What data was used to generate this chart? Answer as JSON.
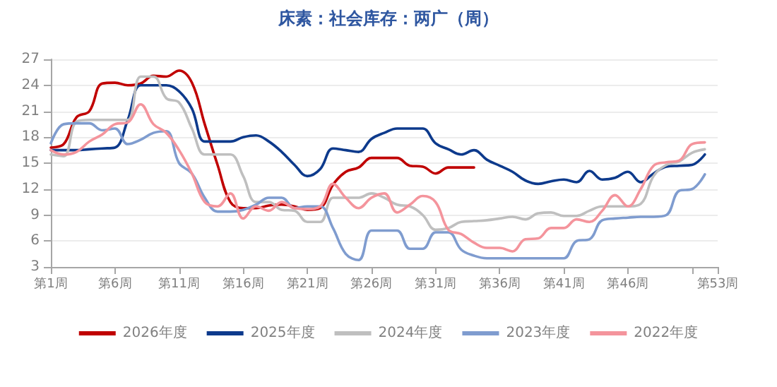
{
  "chart_data": {
    "type": "line",
    "title": "床素：社会库存：两广（周）",
    "categories": [
      "第1周",
      null,
      null,
      null,
      null,
      "第6周",
      null,
      null,
      null,
      null,
      "第11周",
      null,
      null,
      null,
      null,
      "第16周",
      null,
      null,
      null,
      null,
      "第21周",
      null,
      null,
      null,
      null,
      "第26周",
      null,
      null,
      null,
      null,
      "第31周",
      null,
      null,
      null,
      null,
      "第36周",
      null,
      null,
      null,
      null,
      "第41周",
      null,
      null,
      null,
      null,
      "第46周",
      null,
      null,
      null,
      null,
      null,
      null,
      "第53周"
    ],
    "series": [
      {
        "name": "2026年度",
        "color": "#c00000",
        "values": [
          16.8,
          17.2,
          20.3,
          21,
          24.2,
          24.3,
          24,
          24.2,
          25.1,
          25,
          25.7,
          24.3,
          19.5,
          14.8,
          10.5,
          9.8,
          9.8,
          10.1,
          10.2,
          10,
          9.6,
          9.8,
          12.5,
          14,
          14.5,
          15.6,
          15.6,
          15.6,
          14.7,
          14.6,
          13.8,
          14.5,
          14.5,
          14.5,
          null,
          null,
          null,
          null,
          null,
          null,
          null,
          null,
          null,
          null,
          null,
          null,
          null,
          null,
          null,
          null,
          null,
          null,
          null
        ]
      },
      {
        "name": "2025年度",
        "color": "#0d3a8c",
        "values": [
          16.5,
          16.5,
          16.5,
          16.6,
          16.7,
          16.8,
          20,
          24,
          24,
          24,
          23.3,
          21.3,
          17.5,
          17.5,
          17.5,
          18,
          18.2,
          17.5,
          16.3,
          14.8,
          13.5,
          14.3,
          16.7,
          16.5,
          16.3,
          17.8,
          18.5,
          19,
          19,
          19,
          17.3,
          16.6,
          16,
          16.5,
          15.4,
          14.7,
          14,
          13,
          12.6,
          12.9,
          13.1,
          12.8,
          14.1,
          13.1,
          13.3,
          14,
          12.8,
          13.8,
          14.6,
          14.7,
          14.8,
          16,
          null
        ]
      },
      {
        "name": "2024年度",
        "color": "#bfbfbf",
        "values": [
          16,
          15.8,
          19.8,
          20,
          20,
          20,
          20,
          25,
          25,
          22.5,
          22,
          19,
          16,
          16,
          16,
          13.5,
          10.5,
          10.5,
          9.6,
          9.5,
          8.2,
          8.2,
          11,
          11,
          11,
          11.5,
          11,
          10.2,
          10,
          9,
          7.3,
          7.5,
          8.2,
          8.3,
          8.4,
          8.6,
          8.8,
          8.5,
          9.2,
          9.3,
          8.9,
          8.9,
          9.5,
          10,
          10,
          10,
          10.3,
          13.5,
          14.8,
          15.2,
          16.2,
          16.6,
          null
        ]
      },
      {
        "name": "2023年度",
        "color": "#7f9ccf",
        "values": [
          17.3,
          19.5,
          19.6,
          19.6,
          18.8,
          19,
          17.2,
          17.7,
          18.5,
          18.7,
          15,
          13.8,
          11,
          9.4,
          9.4,
          9.6,
          10.2,
          11,
          11,
          9.8,
          10,
          10,
          7.5,
          4.5,
          3.8,
          7.2,
          7.2,
          7.2,
          5.1,
          5.1,
          7,
          7,
          5,
          4.3,
          4,
          4,
          4,
          4,
          4,
          4,
          4,
          6,
          6.2,
          8.4,
          8.6,
          8.7,
          8.8,
          8.8,
          9,
          11.8,
          12,
          13.7,
          null
        ]
      },
      {
        "name": "2022年度",
        "color": "#f4949c",
        "values": [
          16.5,
          16,
          16.3,
          17.5,
          18.3,
          19.5,
          19.7,
          21.8,
          19.5,
          18.5,
          16.5,
          13.8,
          10.5,
          10,
          11.5,
          8.6,
          10,
          9.5,
          10.5,
          9.8,
          9.7,
          10,
          12.6,
          11,
          9.8,
          11,
          11.5,
          9.3,
          10.2,
          11.2,
          10.5,
          7.3,
          6.8,
          5.8,
          5.2,
          5.2,
          4.8,
          6.2,
          6.3,
          7.5,
          7.5,
          8.5,
          8.2,
          9.5,
          11.3,
          10,
          12,
          14.7,
          15.1,
          15.3,
          17.2,
          17.4,
          null
        ]
      }
    ],
    "ylim": [
      3,
      27
    ],
    "yticks": [
      3,
      6,
      9,
      12,
      15,
      18,
      21,
      24,
      27
    ],
    "grid": "y",
    "legend": "bottom",
    "marker": "none",
    "line_style": "solid"
  }
}
